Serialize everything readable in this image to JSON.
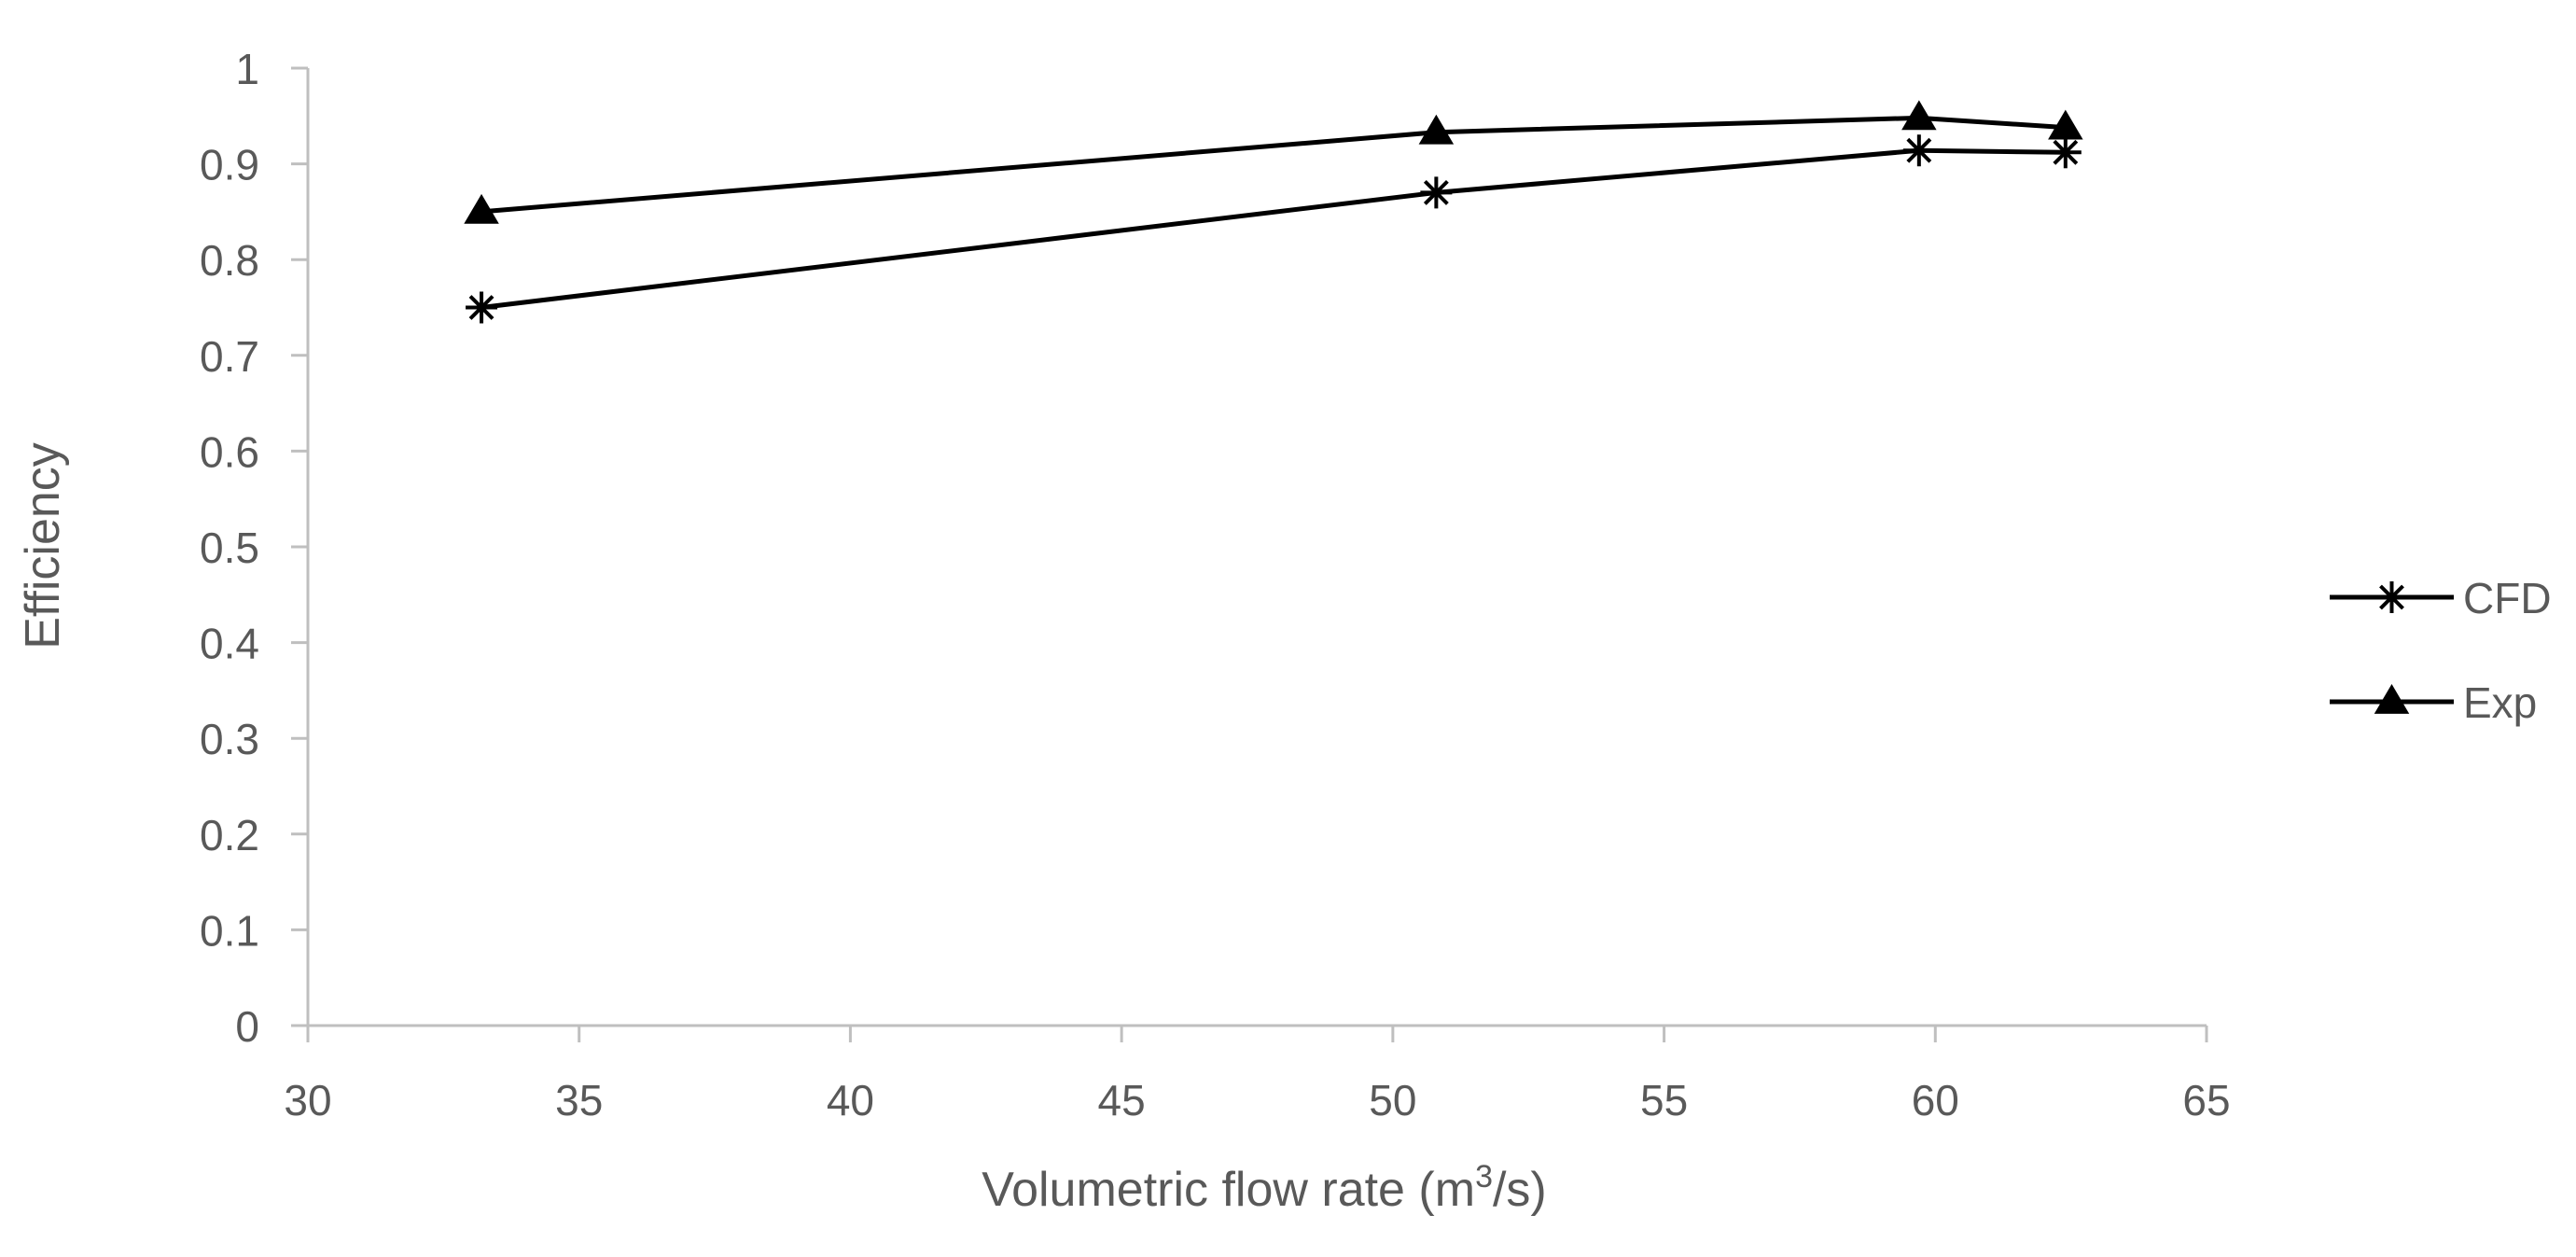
{
  "chart_data": {
    "type": "line",
    "title": "",
    "xlabel": "Volumetric flow rate (m",
    "xlabel_sup": "3",
    "xlabel_suffix": "/s)",
    "ylabel": "Efficiency",
    "xlim": [
      30,
      65
    ],
    "ylim": [
      0,
      1
    ],
    "grid": false,
    "legend_position": "right",
    "x_ticks": [
      30,
      35,
      40,
      45,
      50,
      55,
      60,
      65
    ],
    "x_tick_labels": [
      "30",
      "35",
      "40",
      "45",
      "50",
      "55",
      "60",
      "65"
    ],
    "y_ticks": [
      0,
      0.1,
      0.2,
      0.3,
      0.4,
      0.5,
      0.6,
      0.7,
      0.8,
      0.9,
      1
    ],
    "y_tick_labels": [
      "0",
      "0.1",
      "0.2",
      "0.3",
      "0.4",
      "0.5",
      "0.6",
      "0.7",
      "0.8",
      "0.9",
      "1"
    ],
    "series": [
      {
        "name": "CFD",
        "marker": "asterisk",
        "color": "#000000",
        "x": [
          33.2,
          50.8,
          59.7,
          62.4
        ],
        "y": [
          0.75,
          0.87,
          0.914,
          0.912
        ]
      },
      {
        "name": "Exp",
        "marker": "triangle",
        "color": "#000000",
        "x": [
          33.2,
          50.8,
          59.7,
          62.4
        ],
        "y": [
          0.85,
          0.933,
          0.948,
          0.938
        ]
      }
    ],
    "colors": {
      "axis": "#bfbfbf",
      "text": "#595959",
      "series": "#000000"
    }
  }
}
